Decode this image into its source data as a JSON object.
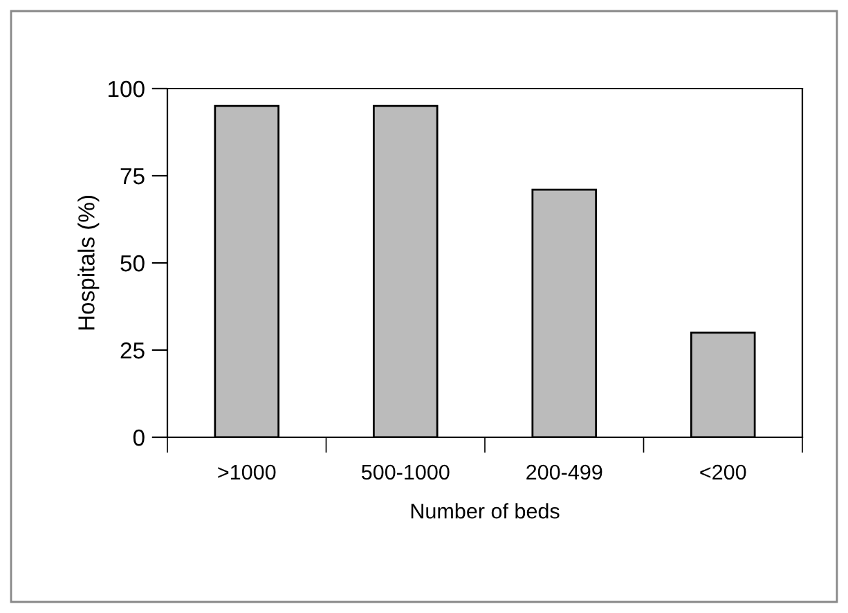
{
  "chart_data": {
    "type": "bar",
    "xlabel": "Number of beds",
    "ylabel": "Hospitals (%)",
    "categories": [
      ">1000",
      "500-1000",
      "200-499",
      "<200"
    ],
    "values": [
      95,
      95,
      71,
      30
    ],
    "color": "#bbbbbb",
    "ylim": [
      0,
      100
    ],
    "yticks": [
      0,
      25,
      50,
      75,
      100
    ],
    "grid": false,
    "legend": false
  }
}
